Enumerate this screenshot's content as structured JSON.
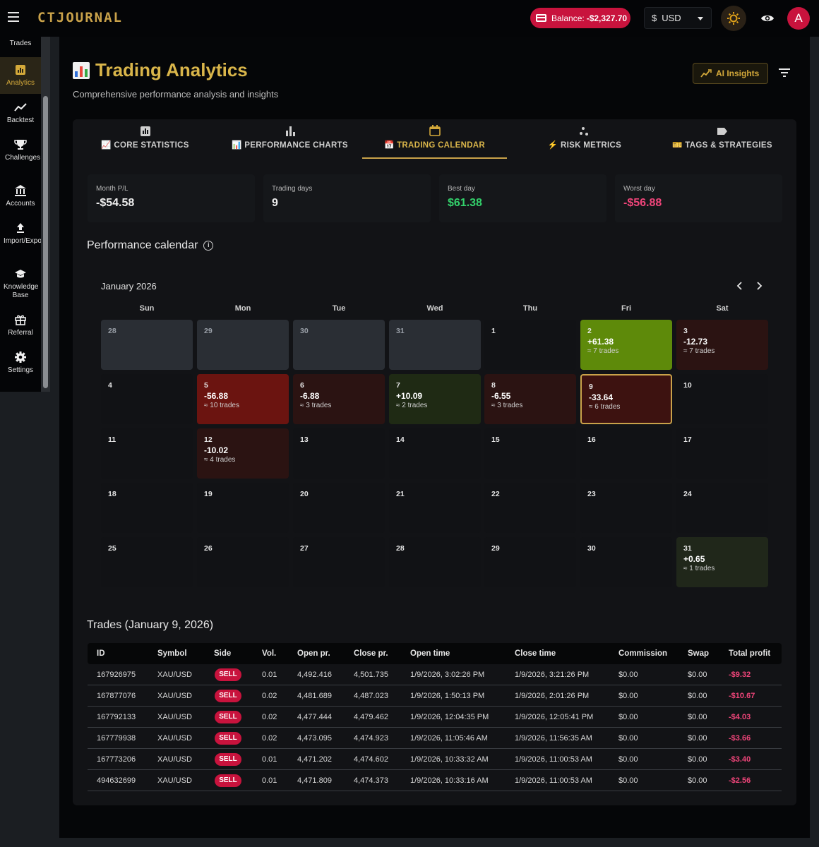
{
  "app": {
    "logo": "CTJOURNAL"
  },
  "topbar": {
    "balance_label": "Balance:",
    "balance_value": "-$2,327.70",
    "currency_symbol": "$",
    "currency": "USD",
    "avatar_letter": "A"
  },
  "sidebar": {
    "items": [
      {
        "label": "Trades",
        "icon": "list-icon"
      },
      {
        "label": "Analytics",
        "icon": "analytics-icon",
        "active": true
      },
      {
        "label": "Backtest",
        "icon": "trend-icon"
      },
      {
        "label": "Challenges",
        "icon": "trophy-icon"
      },
      {
        "label": "Accounts",
        "icon": "bank-icon"
      },
      {
        "label": "Import/Export",
        "icon": "upload-icon"
      },
      {
        "label": "Knowledge Base",
        "icon": "school-icon"
      },
      {
        "label": "Referral",
        "icon": "gift-icon"
      },
      {
        "label": "Settings",
        "icon": "gear-icon"
      }
    ]
  },
  "header": {
    "title": "Trading Analytics",
    "subtitle": "Comprehensive performance analysis and insights",
    "ai_button": "AI Insights"
  },
  "tabs": [
    {
      "label": "📈 CORE STATISTICS",
      "icon": "bar-chart-icon"
    },
    {
      "label": "📊 PERFORMANCE CHARTS",
      "icon": "bars-icon"
    },
    {
      "label": "📅 TRADING CALENDAR",
      "icon": "calendar-icon",
      "active": true
    },
    {
      "label": "⚡ RISK METRICS",
      "icon": "scatter-icon"
    },
    {
      "label": "🎫 TAGS & STRATEGIES",
      "icon": "tag-icon"
    }
  ],
  "stats": [
    {
      "label": "Month P/L",
      "value": "-$54.58",
      "tone": "neutral"
    },
    {
      "label": "Trading days",
      "value": "9",
      "tone": "neutral"
    },
    {
      "label": "Best day",
      "value": "$61.38",
      "tone": "pos"
    },
    {
      "label": "Worst day",
      "value": "-$56.88",
      "tone": "neg"
    }
  ],
  "calendar": {
    "heading": "Performance calendar",
    "month": "January 2026",
    "weekdays": [
      "Sun",
      "Mon",
      "Tue",
      "Wed",
      "Thu",
      "Fri",
      "Sat"
    ],
    "weeks": [
      [
        {
          "day": "28",
          "kind": "prev"
        },
        {
          "day": "29",
          "kind": "prev"
        },
        {
          "day": "30",
          "kind": "prev"
        },
        {
          "day": "31",
          "kind": "prev"
        },
        {
          "day": "1",
          "kind": "empty"
        },
        {
          "day": "2",
          "kind": "win-strong",
          "pl": "+61.38",
          "trades": "≈ 7 trades"
        },
        {
          "day": "3",
          "kind": "loss-weak",
          "pl": "-12.73",
          "trades": "≈ 7 trades"
        }
      ],
      [
        {
          "day": "4",
          "kind": "empty"
        },
        {
          "day": "5",
          "kind": "loss-strong",
          "pl": "-56.88",
          "trades": "≈ 10 trades"
        },
        {
          "day": "6",
          "kind": "loss-weak",
          "pl": "-6.88",
          "trades": "≈ 3 trades"
        },
        {
          "day": "7",
          "kind": "win-weak",
          "pl": "+10.09",
          "trades": "≈ 2 trades"
        },
        {
          "day": "8",
          "kind": "loss-weak",
          "pl": "-6.55",
          "trades": "≈ 3 trades"
        },
        {
          "day": "9",
          "kind": "loss-mid",
          "pl": "-33.64",
          "trades": "≈ 6 trades",
          "selected": true
        },
        {
          "day": "10",
          "kind": "empty"
        }
      ],
      [
        {
          "day": "11",
          "kind": "empty"
        },
        {
          "day": "12",
          "kind": "loss-weak",
          "pl": "-10.02",
          "trades": "≈ 4 trades"
        },
        {
          "day": "13",
          "kind": "empty"
        },
        {
          "day": "14",
          "kind": "empty"
        },
        {
          "day": "15",
          "kind": "empty"
        },
        {
          "day": "16",
          "kind": "empty"
        },
        {
          "day": "17",
          "kind": "empty"
        }
      ],
      [
        {
          "day": "18",
          "kind": "empty"
        },
        {
          "day": "19",
          "kind": "empty"
        },
        {
          "day": "20",
          "kind": "empty"
        },
        {
          "day": "21",
          "kind": "empty"
        },
        {
          "day": "22",
          "kind": "empty"
        },
        {
          "day": "23",
          "kind": "empty"
        },
        {
          "day": "24",
          "kind": "empty"
        }
      ],
      [
        {
          "day": "25",
          "kind": "empty"
        },
        {
          "day": "26",
          "kind": "empty"
        },
        {
          "day": "27",
          "kind": "empty"
        },
        {
          "day": "28",
          "kind": "empty"
        },
        {
          "day": "29",
          "kind": "empty"
        },
        {
          "day": "30",
          "kind": "empty"
        },
        {
          "day": "31",
          "kind": "win-tiny",
          "pl": "+0.65",
          "trades": "≈ 1 trades"
        }
      ]
    ]
  },
  "trades": {
    "heading": "Trades (January 9, 2026)",
    "columns": [
      "ID",
      "Symbol",
      "Side",
      "Vol.",
      "Open pr.",
      "Close pr.",
      "Open time",
      "Close time",
      "Commission",
      "Swap",
      "Total profit"
    ],
    "rows": [
      [
        "167926975",
        "XAU/USD",
        "SELL",
        "0.01",
        "4,492.416",
        "4,501.735",
        "1/9/2026, 3:02:26 PM",
        "1/9/2026, 3:21:26 PM",
        "$0.00",
        "$0.00",
        "-$9.32"
      ],
      [
        "167877076",
        "XAU/USD",
        "SELL",
        "0.02",
        "4,481.689",
        "4,487.023",
        "1/9/2026, 1:50:13 PM",
        "1/9/2026, 2:01:26 PM",
        "$0.00",
        "$0.00",
        "-$10.67"
      ],
      [
        "167792133",
        "XAU/USD",
        "SELL",
        "0.02",
        "4,477.444",
        "4,479.462",
        "1/9/2026, 12:04:35 PM",
        "1/9/2026, 12:05:41 PM",
        "$0.00",
        "$0.00",
        "-$4.03"
      ],
      [
        "167779938",
        "XAU/USD",
        "SELL",
        "0.02",
        "4,473.095",
        "4,474.923",
        "1/9/2026, 11:05:46 AM",
        "1/9/2026, 11:56:35 AM",
        "$0.00",
        "$0.00",
        "-$3.66"
      ],
      [
        "167773206",
        "XAU/USD",
        "SELL",
        "0.01",
        "4,471.202",
        "4,474.602",
        "1/9/2026, 10:33:32 AM",
        "1/9/2026, 11:00:53 AM",
        "$0.00",
        "$0.00",
        "-$3.40"
      ],
      [
        "494632699",
        "XAU/USD",
        "SELL",
        "0.01",
        "4,471.809",
        "4,474.373",
        "1/9/2026, 10:33:16 AM",
        "1/9/2026, 11:00:53 AM",
        "$0.00",
        "$0.00",
        "-$2.56"
      ]
    ]
  },
  "colors": {
    "accent": "#d4a93a",
    "danger": "#c8133d",
    "positive": "#33d16b",
    "negative": "#f0457a"
  }
}
